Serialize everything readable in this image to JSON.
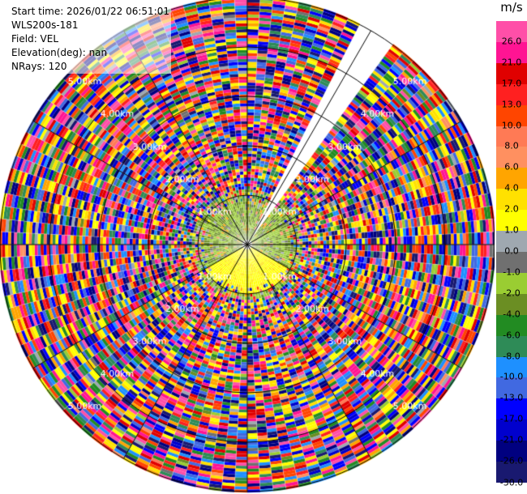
{
  "info": {
    "start_time": "Start time: 2026/01/22 06:51:01",
    "instrument": "WLS200s-181",
    "field": "Field: VEL",
    "elevation": "Elevation(deg): nan",
    "nrays": "NRays: 120"
  },
  "chart_data": {
    "type": "heatmap",
    "subtype": "polar-ppi",
    "field": "VEL",
    "nrays": 120,
    "max_range_km": 5.0,
    "range_rings_km": [
      1.0,
      2.0,
      3.0,
      4.0,
      5.0
    ],
    "ring_labels": [
      "1.00km",
      "2.00km",
      "3.00km",
      "4.00km",
      "5.00km"
    ],
    "missing_sector_deg": [
      27,
      35
    ],
    "colorbar": {
      "unit": "m/s",
      "ticks": [
        "26.0",
        "21.0",
        "17.0",
        "13.0",
        "10.0",
        "8.0",
        "6.0",
        "4.0",
        "2.0",
        "1.0",
        "0.0",
        "-1.0",
        "-2.0",
        "-4.0",
        "-6.0",
        "-8.0",
        "-10.0",
        "-13.0",
        "-17.0",
        "-21.0",
        "-26.0",
        "-30.0"
      ],
      "colors": [
        "#ff4fa8",
        "#ff1493",
        "#e00000",
        "#ff2020",
        "#ff4500",
        "#ff7a55",
        "#ff9060",
        "#ffa500",
        "#ffe100",
        "#ffff00",
        "#9fa8b0",
        "#707070",
        "#9acd32",
        "#6b8e23",
        "#228b22",
        "#2e8b57",
        "#1e90ff",
        "#4169e1",
        "#0000ff",
        "#0000cd",
        "#000080",
        "#191970"
      ]
    }
  }
}
